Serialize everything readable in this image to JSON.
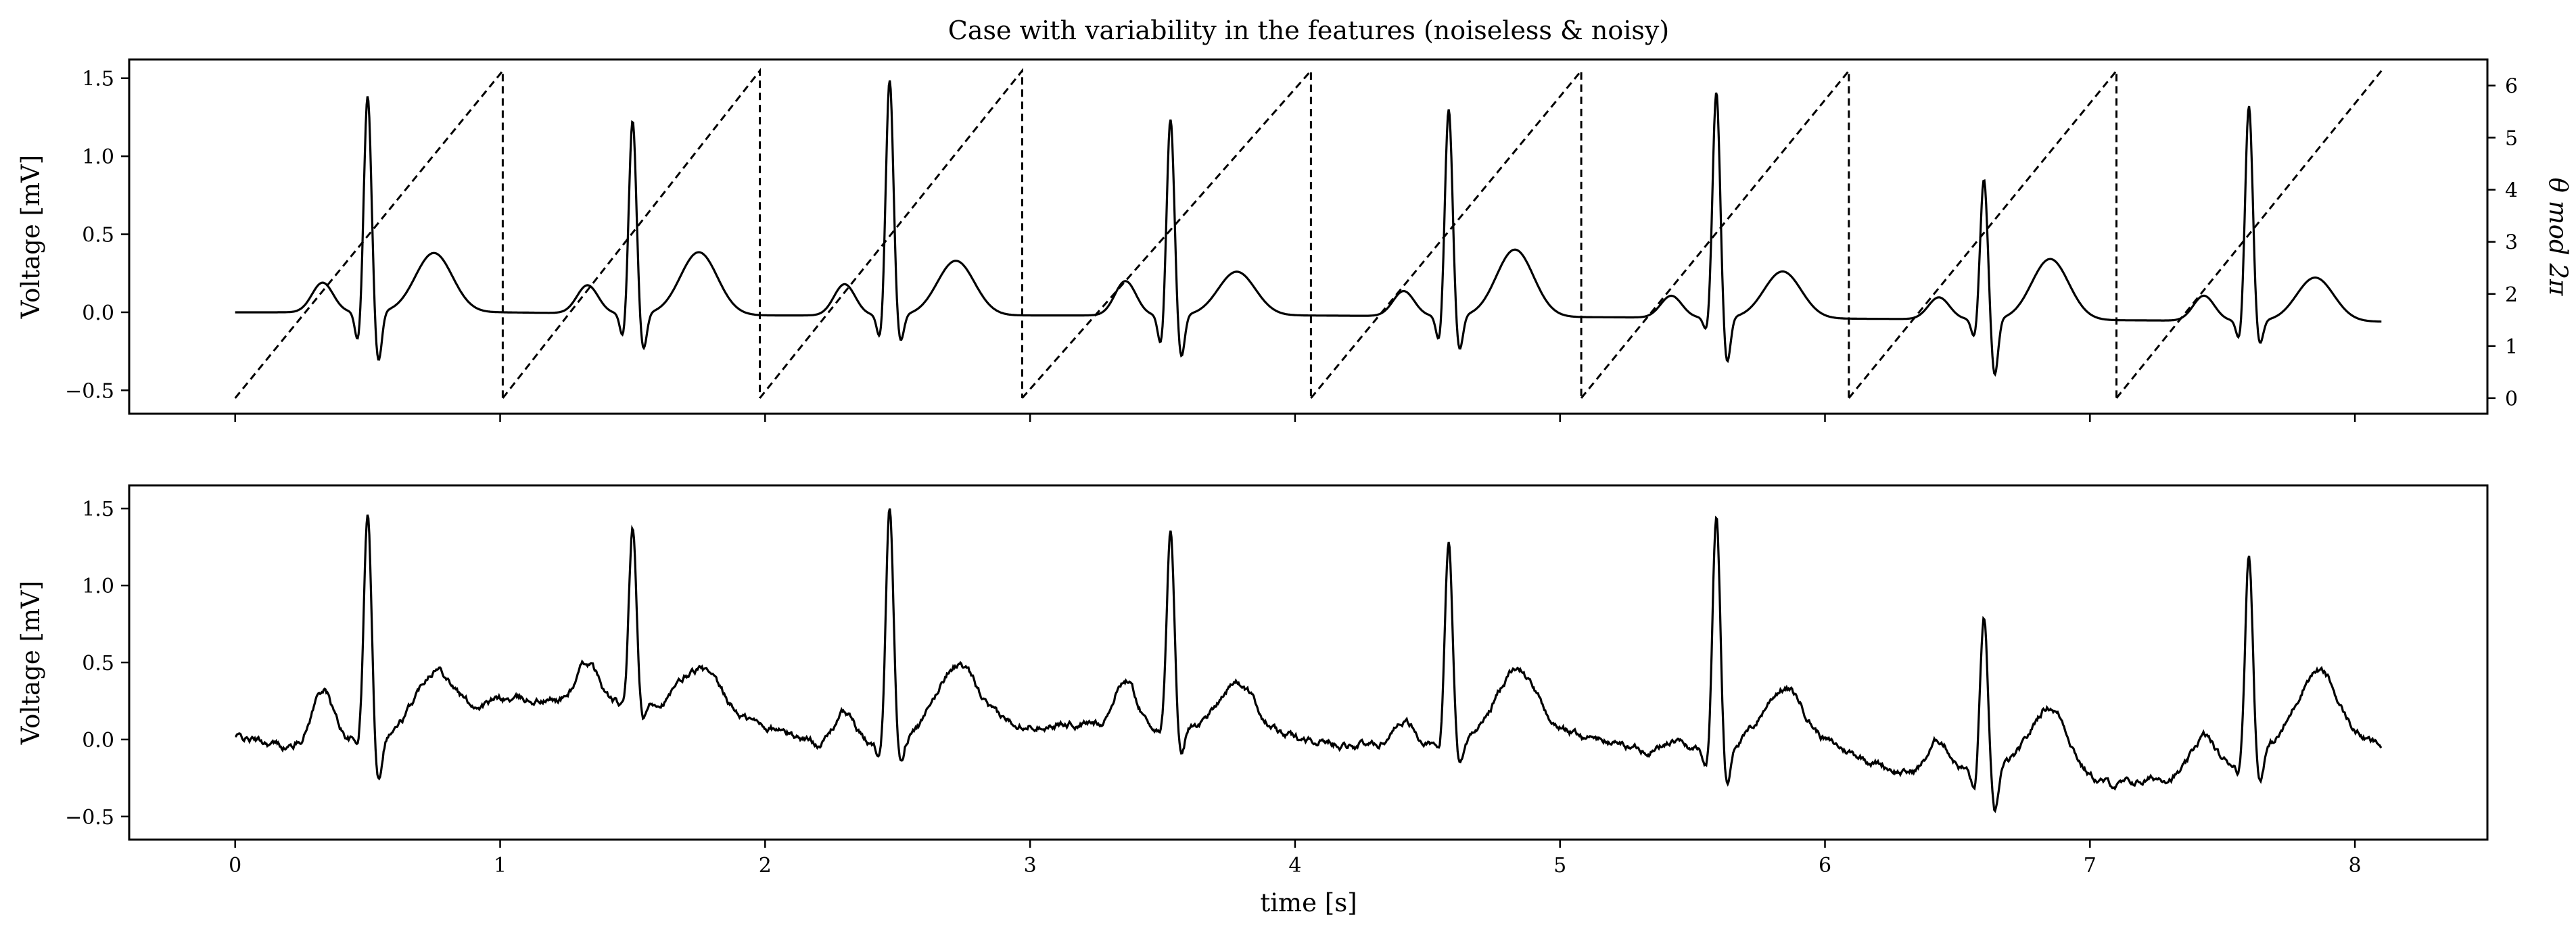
{
  "figure": {
    "title": "Case with variability in the features (noiseless & noisy)"
  },
  "chart_data": [
    {
      "type": "line",
      "title": "Case with variability in the features (noiseless & noisy)",
      "xlabel": "",
      "ylabel": "Voltage [mV]",
      "y2label": "θ mod 2π",
      "xlim": [
        -0.4,
        8.5
      ],
      "ylim": [
        -0.65,
        1.62
      ],
      "y2lim": [
        -0.3,
        6.5
      ],
      "xticks": [
        0,
        1,
        2,
        3,
        4,
        5,
        6,
        7,
        8
      ],
      "yticks": [
        -0.5,
        0.0,
        0.5,
        1.0,
        1.5
      ],
      "ytick_labels": [
        "−0.5",
        "0.0",
        "0.5",
        "1.0",
        "1.5"
      ],
      "y2ticks": [
        0,
        1,
        2,
        3,
        4,
        5,
        6
      ],
      "ecg_noiseless": {
        "beats": [
          {
            "r": 0.5,
            "p": 0.19,
            "q": -0.21,
            "ra": 1.39,
            "s": -0.33,
            "t": 0.38
          },
          {
            "r": 1.5,
            "p": 0.18,
            "q": -0.17,
            "ra": 1.24,
            "s": -0.24,
            "t": 0.4
          },
          {
            "r": 2.47,
            "p": 0.2,
            "q": -0.17,
            "ra": 1.51,
            "s": -0.18,
            "t": 0.35
          },
          {
            "r": 3.53,
            "p": 0.22,
            "q": -0.21,
            "ra": 1.26,
            "s": -0.28,
            "t": 0.28
          },
          {
            "r": 4.58,
            "p": 0.16,
            "q": -0.18,
            "ra": 1.33,
            "s": -0.23,
            "t": 0.43
          },
          {
            "r": 5.59,
            "p": 0.14,
            "q": -0.1,
            "ra": 1.45,
            "s": -0.3,
            "t": 0.3
          },
          {
            "r": 6.6,
            "p": 0.14,
            "q": -0.13,
            "ra": 0.9,
            "s": -0.37,
            "t": 0.39
          },
          {
            "r": 7.6,
            "p": 0.16,
            "q": -0.14,
            "ra": 1.38,
            "s": -0.16,
            "t": 0.28
          }
        ],
        "baseline_x": [
          0,
          1,
          2,
          3,
          4,
          5,
          6,
          7,
          8.1
        ],
        "baseline_y": [
          0.0,
          0.0,
          -0.02,
          -0.02,
          -0.02,
          -0.03,
          -0.04,
          -0.05,
          -0.06
        ]
      },
      "phase_dashed": {
        "style": "dashed",
        "x_start": 0.0,
        "x_end": 8.1,
        "resets": [
          1.01,
          1.98,
          2.97,
          4.06,
          5.08,
          6.09,
          7.1
        ],
        "min": 0,
        "max": 6.283
      }
    },
    {
      "type": "line",
      "title": "",
      "xlabel": "time [s]",
      "ylabel": "Voltage [mV]",
      "xlim": [
        -0.4,
        8.5
      ],
      "ylim": [
        -0.65,
        1.65
      ],
      "xticks": [
        0,
        1,
        2,
        3,
        4,
        5,
        6,
        7,
        8
      ],
      "yticks": [
        -0.5,
        0.0,
        0.5,
        1.0,
        1.5
      ],
      "ytick_labels": [
        "−0.5",
        "0.0",
        "0.5",
        "1.0",
        "1.5"
      ],
      "ecg_noisy": {
        "beats": [
          {
            "r": 0.5,
            "p": 0.35,
            "q": -0.05,
            "ra": 1.46,
            "s": -0.28,
            "t": 0.38
          },
          {
            "r": 1.5,
            "p": 0.25,
            "q": -0.05,
            "ra": 1.13,
            "s": -0.11,
            "t": 0.25
          },
          {
            "r": 2.47,
            "p": 0.25,
            "q": -0.1,
            "ra": 1.55,
            "s": -0.15,
            "t": 0.4
          },
          {
            "r": 3.53,
            "p": 0.3,
            "q": -0.07,
            "ra": 1.28,
            "s": -0.18,
            "t": 0.32
          },
          {
            "r": 4.58,
            "p": 0.18,
            "q": -0.08,
            "ra": 1.33,
            "s": -0.16,
            "t": 0.38
          },
          {
            "r": 5.59,
            "p": 0.08,
            "q": -0.12,
            "ra": 1.5,
            "s": -0.28,
            "t": 0.3
          },
          {
            "r": 6.6,
            "p": 0.2,
            "q": -0.16,
            "ra": 0.98,
            "s": -0.33,
            "t": 0.44
          },
          {
            "r": 7.6,
            "p": 0.22,
            "q": -0.08,
            "ra": 1.33,
            "s": -0.2,
            "t": 0.38
          }
        ],
        "baseline_x": [
          0,
          0.2,
          0.7,
          1.0,
          1.3,
          1.8,
          2.3,
          2.8,
          3.1,
          3.3,
          3.8,
          4.2,
          4.5,
          4.9,
          5.4,
          5.9,
          6.3,
          6.7,
          7.1,
          7.5,
          7.9,
          8.1
        ],
        "baseline_y": [
          0.02,
          -0.05,
          0.05,
          0.26,
          0.25,
          0.2,
          -0.08,
          0.12,
          0.1,
          0.1,
          0.05,
          -0.03,
          -0.05,
          0.1,
          -0.1,
          0.05,
          -0.22,
          -0.18,
          -0.3,
          -0.18,
          0.1,
          -0.05
        ]
      }
    }
  ]
}
